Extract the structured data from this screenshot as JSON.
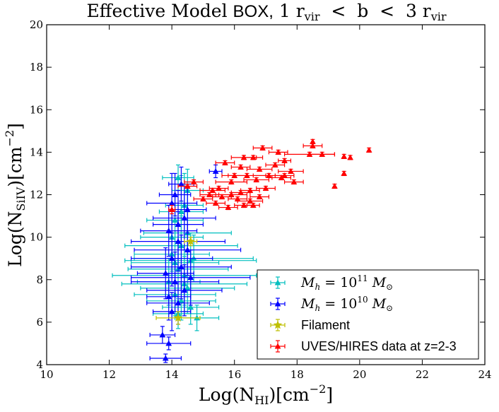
{
  "chart_data": {
    "type": "scatter",
    "title": {
      "part1": "Effective Model ",
      "part2": "BOX,",
      "part3": " 1 r",
      "sub1": "vir",
      "part4": "  <  b  <  3 r",
      "sub2": "vir"
    },
    "xlabel": {
      "pre": "Log(N",
      "sub": "HI",
      "post": ")[cm",
      "sup": "−2",
      "end": "]"
    },
    "ylabel": {
      "pre": "Log(N",
      "sub": "SiIV",
      "post": ")[cm",
      "sup": "−2",
      "end": "]"
    },
    "xlim": [
      10,
      24
    ],
    "ylim": [
      4,
      20
    ],
    "xticks": [
      10,
      12,
      14,
      16,
      18,
      20,
      22,
      24
    ],
    "yticks": [
      4,
      6,
      8,
      10,
      12,
      14,
      16,
      18,
      20
    ],
    "grid": false,
    "legend_position": "lower-right",
    "series": [
      {
        "name": "Mh = 10^11 Msun",
        "legend_label": {
          "pre": "M",
          "sub": "h",
          "mid": " = 10",
          "sup": "11",
          "post": " M",
          "sub2": "⊙"
        },
        "color": "#00bfbf",
        "marker": "triangle",
        "points": [
          {
            "x": 14.2,
            "y": 12.8,
            "xerr": 0.5,
            "yerr": 0.6
          },
          {
            "x": 14.4,
            "y": 11.5,
            "xerr": 0.6,
            "yerr": 1.5
          },
          {
            "x": 14.1,
            "y": 10.8,
            "xerr": 0.9,
            "yerr": 1.2
          },
          {
            "x": 14.5,
            "y": 10.2,
            "xerr": 1.4,
            "yerr": 1.0
          },
          {
            "x": 14.3,
            "y": 9.6,
            "xerr": 1.8,
            "yerr": 1.4
          },
          {
            "x": 14.0,
            "y": 9.2,
            "xerr": 1.2,
            "yerr": 1.0
          },
          {
            "x": 14.6,
            "y": 8.9,
            "xerr": 2.1,
            "yerr": 1.3
          },
          {
            "x": 14.2,
            "y": 8.5,
            "xerr": 1.6,
            "yerr": 1.2
          },
          {
            "x": 14.4,
            "y": 8.2,
            "xerr": 2.3,
            "yerr": 1.4
          },
          {
            "x": 13.9,
            "y": 7.9,
            "xerr": 1.0,
            "yerr": 1.1
          },
          {
            "x": 14.5,
            "y": 7.6,
            "xerr": 1.5,
            "yerr": 1.2
          },
          {
            "x": 14.1,
            "y": 7.3,
            "xerr": 1.3,
            "yerr": 1.0
          },
          {
            "x": 14.3,
            "y": 7.0,
            "xerr": 1.1,
            "yerr": 0.9
          },
          {
            "x": 14.6,
            "y": 6.7,
            "xerr": 0.9,
            "yerr": 0.8
          },
          {
            "x": 14.2,
            "y": 6.4,
            "xerr": 0.8,
            "yerr": 0.7
          },
          {
            "x": 14.8,
            "y": 6.2,
            "xerr": 0.7,
            "yerr": 0.6
          },
          {
            "x": 14.0,
            "y": 10.0,
            "xerr": 1.0,
            "yerr": 1.6
          },
          {
            "x": 14.7,
            "y": 9.0,
            "xerr": 1.9,
            "yerr": 1.1
          },
          {
            "x": 14.3,
            "y": 11.2,
            "xerr": 0.7,
            "yerr": 1.7
          },
          {
            "x": 14.5,
            "y": 12.2,
            "xerr": 0.5,
            "yerr": 1.0
          },
          {
            "x": 14.1,
            "y": 8.8,
            "xerr": 1.4,
            "yerr": 1.5
          },
          {
            "x": 14.4,
            "y": 7.8,
            "xerr": 2.0,
            "yerr": 1.3
          }
        ]
      },
      {
        "name": "Mh = 10^10 Msun",
        "legend_label": {
          "pre": "M",
          "sub": "h",
          "mid": " = 10",
          "sup": "10",
          "post": " M",
          "sub2": "⊙"
        },
        "color": "#0000ff",
        "marker": "triangle",
        "points": [
          {
            "x": 15.4,
            "y": 13.1,
            "xerr": 0.2,
            "yerr": 0.3
          },
          {
            "x": 14.3,
            "y": 12.5,
            "xerr": 0.4,
            "yerr": 0.8
          },
          {
            "x": 14.0,
            "y": 11.6,
            "xerr": 0.8,
            "yerr": 1.4
          },
          {
            "x": 14.4,
            "y": 10.9,
            "xerr": 1.0,
            "yerr": 1.5
          },
          {
            "x": 13.9,
            "y": 10.3,
            "xerr": 0.9,
            "yerr": 1.2
          },
          {
            "x": 14.2,
            "y": 9.8,
            "xerr": 1.5,
            "yerr": 1.4
          },
          {
            "x": 14.5,
            "y": 9.4,
            "xerr": 1.7,
            "yerr": 1.2
          },
          {
            "x": 14.0,
            "y": 9.0,
            "xerr": 1.3,
            "yerr": 1.3
          },
          {
            "x": 14.3,
            "y": 8.6,
            "xerr": 1.6,
            "yerr": 1.5
          },
          {
            "x": 13.8,
            "y": 8.3,
            "xerr": 0.9,
            "yerr": 1.2
          },
          {
            "x": 14.1,
            "y": 7.9,
            "xerr": 1.4,
            "yerr": 1.4
          },
          {
            "x": 14.4,
            "y": 7.5,
            "xerr": 1.2,
            "yerr": 1.2
          },
          {
            "x": 13.9,
            "y": 7.2,
            "xerr": 0.7,
            "yerr": 1.1
          },
          {
            "x": 14.2,
            "y": 6.9,
            "xerr": 1.0,
            "yerr": 1.0
          },
          {
            "x": 14.0,
            "y": 6.5,
            "xerr": 0.6,
            "yerr": 0.9
          },
          {
            "x": 13.7,
            "y": 5.4,
            "xerr": 0.4,
            "yerr": 0.4
          },
          {
            "x": 13.9,
            "y": 5.0,
            "xerr": 0.7,
            "yerr": 0.3
          },
          {
            "x": 13.8,
            "y": 4.3,
            "xerr": 0.5,
            "yerr": 0.2
          },
          {
            "x": 14.6,
            "y": 8.1,
            "xerr": 1.9,
            "yerr": 1.3
          },
          {
            "x": 14.2,
            "y": 10.6,
            "xerr": 0.8,
            "yerr": 1.6
          },
          {
            "x": 14.5,
            "y": 11.3,
            "xerr": 0.6,
            "yerr": 1.1
          },
          {
            "x": 14.1,
            "y": 12.0,
            "xerr": 0.5,
            "yerr": 1.0
          }
        ]
      },
      {
        "name": "Filament",
        "color": "#bfbf00",
        "marker": "star",
        "points": [
          {
            "x": 14.6,
            "y": 9.8,
            "xerr": 0.2,
            "yerr": 0.2
          },
          {
            "x": 14.2,
            "y": 6.2,
            "xerr": 0.7,
            "yerr": 0.3
          }
        ]
      },
      {
        "name": "UVES/HIRES data at z=2-3",
        "color": "#ff0000",
        "marker": "triangle",
        "points": [
          {
            "x": 18.5,
            "y": 14.5,
            "xerr": 0.0,
            "yerr": 0.1
          },
          {
            "x": 18.5,
            "y": 14.3,
            "xerr": 0.3,
            "yerr": 0.1
          },
          {
            "x": 18.4,
            "y": 13.9,
            "xerr": 0.8,
            "yerr": 0.1
          },
          {
            "x": 18.8,
            "y": 13.9,
            "xerr": 0.4,
            "yerr": 0.1
          },
          {
            "x": 20.3,
            "y": 14.1,
            "xerr": 0.0,
            "yerr": 0.1
          },
          {
            "x": 19.5,
            "y": 13.8,
            "xerr": 0.0,
            "yerr": 0.1
          },
          {
            "x": 19.7,
            "y": 13.75,
            "xerr": 0.0,
            "yerr": 0.1
          },
          {
            "x": 19.5,
            "y": 13.0,
            "xerr": 0.0,
            "yerr": 0.1
          },
          {
            "x": 19.2,
            "y": 12.4,
            "xerr": 0.0,
            "yerr": 0.1
          },
          {
            "x": 16.9,
            "y": 14.2,
            "xerr": 0.3,
            "yerr": 0.1
          },
          {
            "x": 17.4,
            "y": 14.0,
            "xerr": 0.3,
            "yerr": 0.1
          },
          {
            "x": 17.6,
            "y": 13.6,
            "xerr": 0.2,
            "yerr": 0.1
          },
          {
            "x": 17.3,
            "y": 13.4,
            "xerr": 0.3,
            "yerr": 0.1
          },
          {
            "x": 16.3,
            "y": 13.75,
            "xerr": 0.4,
            "yerr": 0.1
          },
          {
            "x": 16.6,
            "y": 13.75,
            "xerr": 0.3,
            "yerr": 0.1
          },
          {
            "x": 15.7,
            "y": 13.5,
            "xerr": 0.3,
            "yerr": 0.1
          },
          {
            "x": 16.2,
            "y": 13.3,
            "xerr": 0.3,
            "yerr": 0.1
          },
          {
            "x": 17.8,
            "y": 13.1,
            "xerr": 0.4,
            "yerr": 0.1
          },
          {
            "x": 16.8,
            "y": 13.2,
            "xerr": 0.4,
            "yerr": 0.1
          },
          {
            "x": 17.1,
            "y": 12.9,
            "xerr": 0.5,
            "yerr": 0.1
          },
          {
            "x": 17.5,
            "y": 12.8,
            "xerr": 0.3,
            "yerr": 0.1
          },
          {
            "x": 17.6,
            "y": 12.9,
            "xerr": 0.3,
            "yerr": 0.1
          },
          {
            "x": 16.4,
            "y": 12.9,
            "xerr": 0.6,
            "yerr": 0.1
          },
          {
            "x": 16.0,
            "y": 12.9,
            "xerr": 0.4,
            "yerr": 0.1
          },
          {
            "x": 15.9,
            "y": 12.6,
            "xerr": 0.5,
            "yerr": 0.1
          },
          {
            "x": 16.7,
            "y": 12.7,
            "xerr": 0.4,
            "yerr": 0.1
          },
          {
            "x": 17.0,
            "y": 12.3,
            "xerr": 0.3,
            "yerr": 0.1
          },
          {
            "x": 16.5,
            "y": 12.2,
            "xerr": 0.3,
            "yerr": 0.1
          },
          {
            "x": 16.2,
            "y": 12.1,
            "xerr": 0.3,
            "yerr": 0.1
          },
          {
            "x": 15.9,
            "y": 12.0,
            "xerr": 0.5,
            "yerr": 0.1
          },
          {
            "x": 15.5,
            "y": 12.3,
            "xerr": 0.3,
            "yerr": 0.1
          },
          {
            "x": 15.3,
            "y": 12.2,
            "xerr": 0.4,
            "yerr": 0.1
          },
          {
            "x": 15.2,
            "y": 12.0,
            "xerr": 0.3,
            "yerr": 0.1
          },
          {
            "x": 15.6,
            "y": 11.9,
            "xerr": 0.3,
            "yerr": 0.1
          },
          {
            "x": 16.1,
            "y": 11.8,
            "xerr": 0.3,
            "yerr": 0.1
          },
          {
            "x": 16.5,
            "y": 11.7,
            "xerr": 0.4,
            "yerr": 0.1
          },
          {
            "x": 16.8,
            "y": 11.9,
            "xerr": 0.3,
            "yerr": 0.1
          },
          {
            "x": 15.8,
            "y": 11.4,
            "xerr": 0.3,
            "yerr": 0.1
          },
          {
            "x": 16.3,
            "y": 11.5,
            "xerr": 0.3,
            "yerr": 0.1
          },
          {
            "x": 16.6,
            "y": 11.5,
            "xerr": 0.2,
            "yerr": 0.1
          },
          {
            "x": 15.4,
            "y": 11.6,
            "xerr": 0.3,
            "yerr": 0.1
          },
          {
            "x": 14.7,
            "y": 12.6,
            "xerr": 0.3,
            "yerr": 0.1
          },
          {
            "x": 14.5,
            "y": 12.4,
            "xerr": 0.3,
            "yerr": 0.1
          },
          {
            "x": 15.0,
            "y": 11.8,
            "xerr": 0.3,
            "yerr": 0.1
          },
          {
            "x": 14.0,
            "y": 11.3,
            "xerr": 0.1,
            "yerr": 0.2
          },
          {
            "x": 17.9,
            "y": 12.6,
            "xerr": 0.3,
            "yerr": 0.1
          }
        ]
      }
    ]
  }
}
